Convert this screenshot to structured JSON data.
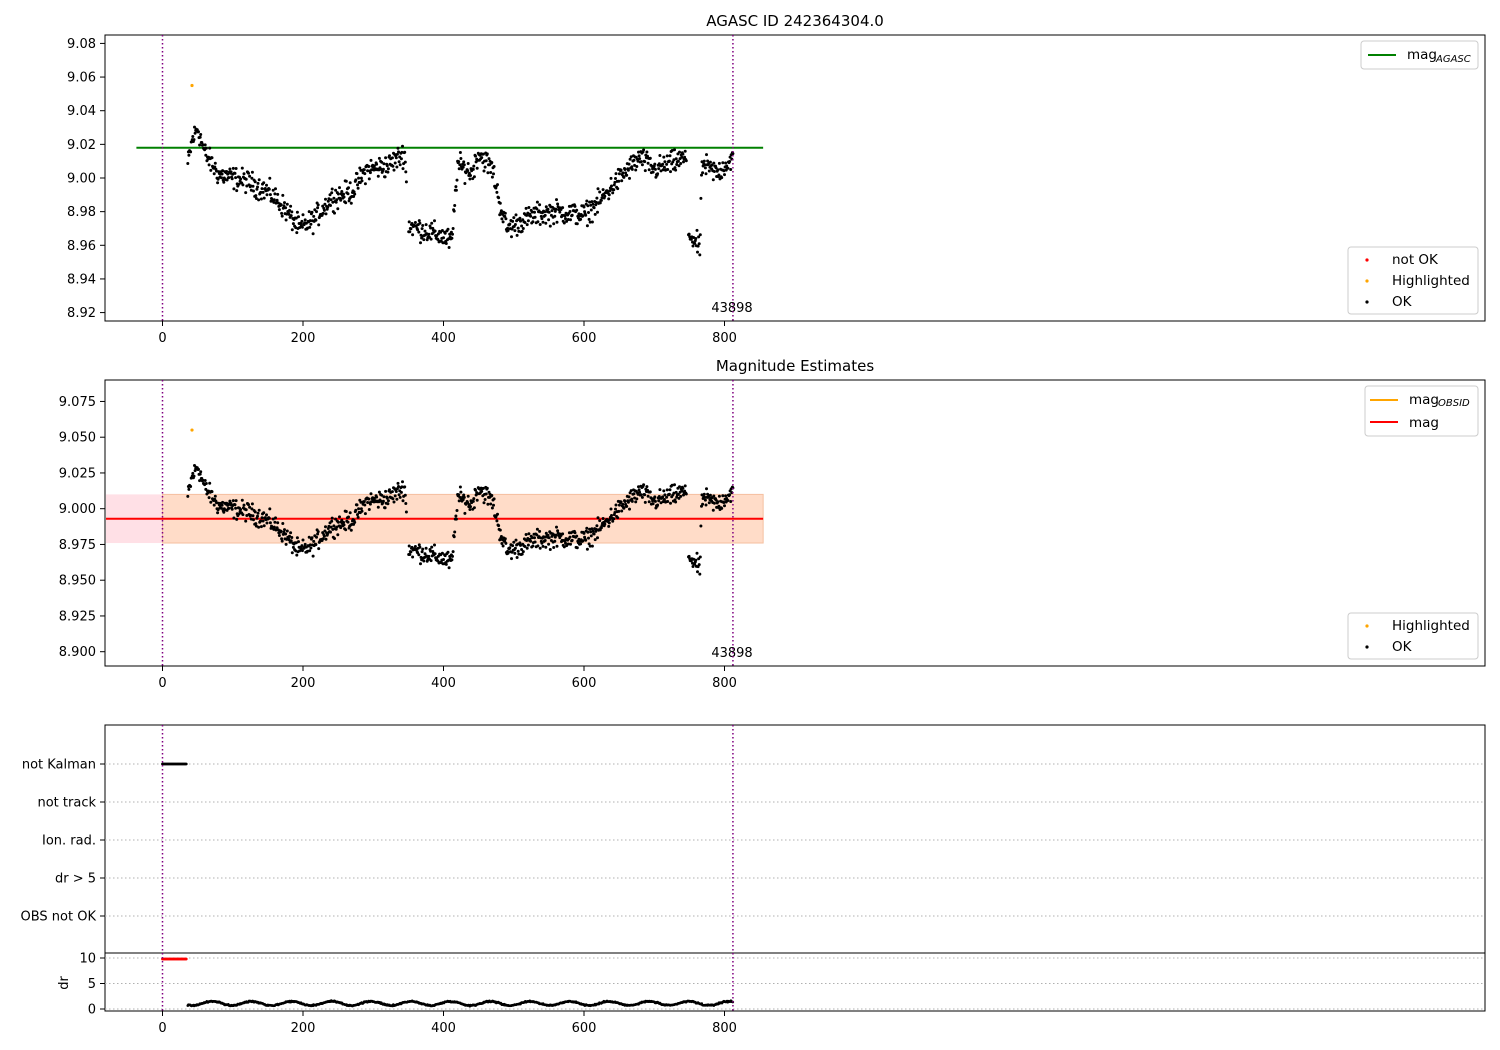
{
  "colors": {
    "ok": "#000000",
    "highlighted": "#ffa500",
    "not_ok": "#ff0000",
    "agasc_line": "#008000",
    "mag_line": "#ff0000",
    "obsid_line": "#ffa500",
    "band_inner": "#ffdcc8",
    "band_outer": "#ffe0e6",
    "vline": "#800080",
    "grid": "#b0b0b0"
  },
  "panel1": {
    "title": "AGASC ID 242364304.0",
    "annotation": "43898",
    "yticks": [
      "9.08",
      "9.06",
      "9.04",
      "9.02",
      "9.00",
      "8.98",
      "8.96",
      "8.94",
      "8.92"
    ],
    "xticks": [
      "0",
      "200",
      "400",
      "600",
      "800"
    ],
    "legend_top": {
      "label_main": "mag",
      "label_sub": "AGASC"
    },
    "legend_bottom": [
      "not OK",
      "Highlighted",
      "OK"
    ]
  },
  "panel2": {
    "title": "Magnitude Estimates",
    "annotation": "43898",
    "yticks": [
      "9.075",
      "9.050",
      "9.025",
      "9.000",
      "8.975",
      "8.950",
      "8.925",
      "8.900"
    ],
    "xticks": [
      "0",
      "200",
      "400",
      "600",
      "800"
    ],
    "legend_top": {
      "label_main": "mag",
      "label_sub": "OBSID",
      "label2": "mag"
    },
    "legend_bottom": [
      "Highlighted",
      "OK"
    ]
  },
  "panel3": {
    "flags": [
      "not Kalman",
      "not track",
      "Ion. rad.",
      "dr > 5",
      "OBS not OK"
    ],
    "ylabel": "dr",
    "yticks": [
      "10",
      "5",
      "0"
    ],
    "xticks": [
      "0",
      "200",
      "400",
      "600",
      "800"
    ]
  },
  "chart_data": [
    {
      "type": "scatter",
      "title": "AGASC ID 242364304.0",
      "ylim": [
        8.915,
        9.085
      ],
      "xlim": [
        -40,
        942
      ],
      "hlines": [
        {
          "name": "mag_AGASC",
          "y": 9.018,
          "x": [
            0,
            855
          ]
        }
      ],
      "vlines": [
        0,
        812
      ],
      "series": [
        {
          "name": "OK",
          "points": "generated: 0.5-sec samples x 36..812, mag 8.95..9.03"
        },
        {
          "name": "Highlighted",
          "points": [
            [
              42,
              9.055
            ]
          ]
        },
        {
          "name": "not OK",
          "points": []
        }
      ]
    },
    {
      "type": "scatter",
      "title": "Magnitude Estimates",
      "ylim": [
        8.89,
        9.09
      ],
      "xlim": [
        -40,
        942
      ],
      "hlines": [
        {
          "name": "mag",
          "y": 8.993,
          "x": [
            -40,
            855
          ]
        }
      ],
      "bands": [
        {
          "y": [
            8.976,
            9.01
          ],
          "x": [
            -40,
            855
          ]
        }
      ],
      "series": [
        {
          "name": "Highlighted",
          "points": [
            [
              42,
              9.055
            ]
          ]
        },
        {
          "name": "OK",
          "points": "same as panel 1"
        }
      ]
    },
    {
      "type": "scatter",
      "title": "",
      "flags": [
        "not Kalman",
        "not track",
        "Ion. rad.",
        "dr > 5",
        "OBS not OK"
      ],
      "not_kalman_x": [
        0,
        35
      ],
      "dr_ylim": [
        -1,
        11
      ],
      "dr_ticks": [
        10,
        5,
        0
      ]
    }
  ]
}
